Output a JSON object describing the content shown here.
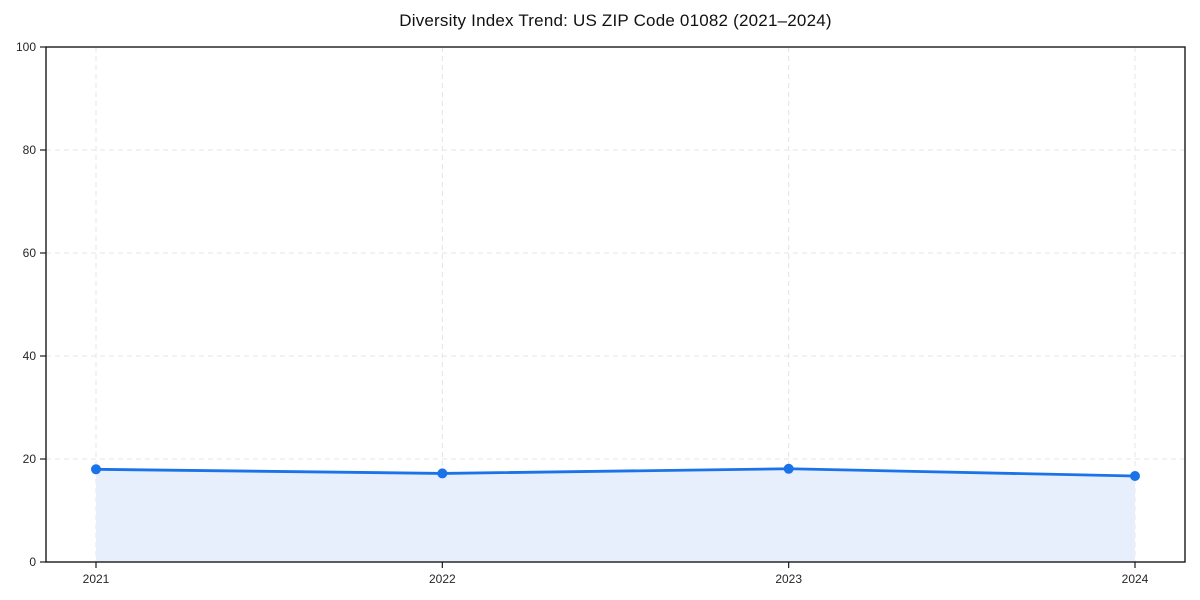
{
  "figure": {
    "background": "#ffffff"
  },
  "chart_data": {
    "type": "area",
    "title": "Diversity Index Trend: US ZIP Code 01082 (2021–2024)",
    "categories": [
      "2021",
      "2022",
      "2023",
      "2024"
    ],
    "values": [
      18.0,
      17.2,
      18.1,
      16.7
    ],
    "xlabel": "",
    "ylabel": "",
    "ylim": [
      0,
      100
    ],
    "yticks": [
      0,
      20,
      40,
      60,
      80,
      100
    ],
    "grid": true,
    "grid_style": "dashed",
    "legend_position": "none",
    "colors": {
      "line": "#1a73e8",
      "marker": "#1a73e8",
      "area_fill": "#e8effc",
      "grid": "#e4e4e4",
      "spine": "#1a1a1a",
      "tick_label": "#262626",
      "title": "#111111"
    }
  }
}
